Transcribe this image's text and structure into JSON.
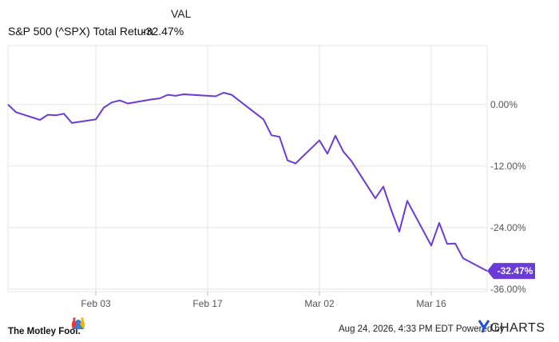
{
  "header": {
    "column_label": "VAL",
    "series_name": "S&P 500 (^SPX) Total Return",
    "series_value": "-32.47%"
  },
  "footer": {
    "brand": "The Motley Fool.",
    "timestamp_note": "Aug 24, 2026, 4:33 PM EDT Powered by",
    "ycharts_logo": "YCHARTS"
  },
  "colors": {
    "line": "#6a3bd8",
    "badge": "#6a3bd8",
    "grid": "#e6e6e6"
  },
  "chart_data": {
    "type": "line",
    "title": "",
    "xlabel": "",
    "ylabel": "",
    "x_ticks": [
      "Feb 03",
      "Feb 17",
      "Mar 02",
      "Mar 16"
    ],
    "y_ticks": [
      "0.00%",
      "-12.00%",
      "-24.00%",
      "-36.00%"
    ],
    "ylim": [
      -36.5,
      11.5
    ],
    "last_value_label": "-32.47%",
    "series": [
      {
        "x": [
          "2020-01-23",
          "2020-01-24",
          "2020-01-27",
          "2020-01-28",
          "2020-01-29",
          "2020-01-30",
          "2020-01-31",
          "2020-02-03",
          "2020-02-04",
          "2020-02-05",
          "2020-02-06",
          "2020-02-07",
          "2020-02-10",
          "2020-02-11",
          "2020-02-12",
          "2020-02-13",
          "2020-02-14",
          "2020-02-18",
          "2020-02-19",
          "2020-02-20",
          "2020-02-21",
          "2020-02-24",
          "2020-02-25",
          "2020-02-26",
          "2020-02-27",
          "2020-02-28",
          "2020-03-02",
          "2020-03-03",
          "2020-03-04",
          "2020-03-05",
          "2020-03-06",
          "2020-03-09",
          "2020-03-10",
          "2020-03-11",
          "2020-03-12",
          "2020-03-13",
          "2020-03-16",
          "2020-03-17",
          "2020-03-18",
          "2020-03-19",
          "2020-03-20",
          "2020-03-23"
        ],
        "values": [
          0.0,
          -1.5,
          -3.0,
          -2.0,
          -2.1,
          -1.8,
          -3.6,
          -2.9,
          -0.6,
          0.4,
          0.8,
          0.2,
          1.0,
          1.2,
          1.9,
          1.7,
          2.0,
          1.6,
          2.3,
          1.9,
          0.7,
          -2.9,
          -6.0,
          -6.3,
          -10.9,
          -11.5,
          -7.0,
          -9.6,
          -6.1,
          -9.2,
          -11.0,
          -18.3,
          -16.0,
          -20.6,
          -24.8,
          -18.8,
          -27.5,
          -23.1,
          -27.2,
          -27.1,
          -30.0,
          -32.47
        ]
      }
    ]
  }
}
